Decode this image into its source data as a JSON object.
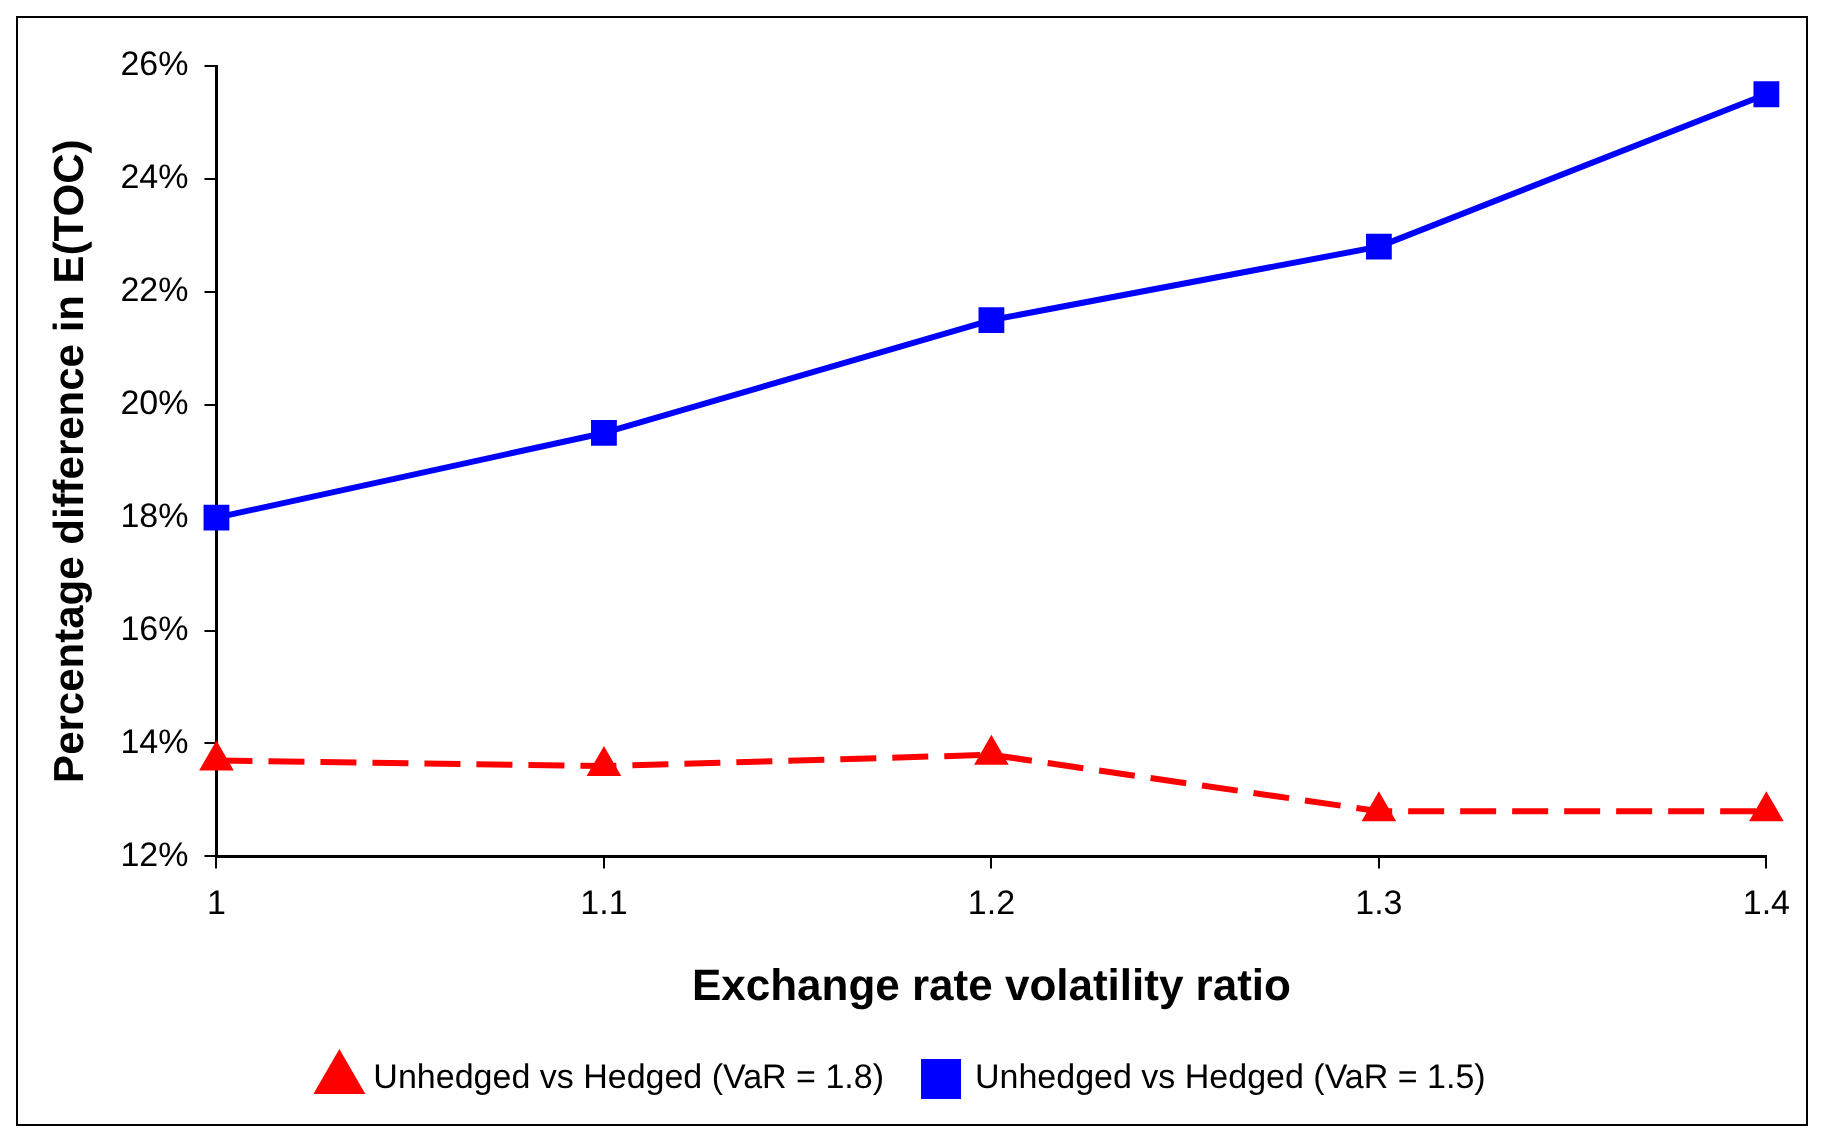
{
  "chart_data": {
    "type": "line",
    "xlabel": "Exchange rate volatility ratio",
    "ylabel": "Percentage difference in E(TOC)",
    "x": [
      1,
      1.1,
      1.2,
      1.3,
      1.4
    ],
    "xlim": [
      1,
      1.4
    ],
    "xticks": [
      1,
      1.1,
      1.2,
      1.3,
      1.4
    ],
    "ylim": [
      12,
      26
    ],
    "yticks": [
      {
        "value": 12,
        "label": "12%"
      },
      {
        "value": 14,
        "label": "14%"
      },
      {
        "value": 16,
        "label": "16%"
      },
      {
        "value": 18,
        "label": "18%"
      },
      {
        "value": 20,
        "label": "20%"
      },
      {
        "value": 22,
        "label": "22%"
      },
      {
        "value": 24,
        "label": "24%"
      },
      {
        "value": 26,
        "label": "26%"
      }
    ],
    "grid": false,
    "legend": "bottom",
    "series": [
      {
        "name": "Unhedged vs Hedged (VaR = 1.8)",
        "color": "#ff0000",
        "values": [
          13.7,
          13.6,
          13.8,
          12.8,
          12.8
        ],
        "marker": "triangle",
        "line_style": "dashed"
      },
      {
        "name": "Unhedged vs Hedged (VaR = 1.5)",
        "color": "#0000ff",
        "values": [
          18.0,
          19.5,
          21.5,
          22.8,
          25.5
        ],
        "marker": "square",
        "line_style": "solid"
      }
    ]
  }
}
